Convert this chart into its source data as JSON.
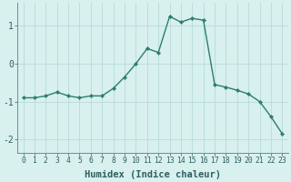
{
  "xlabel": "Humidex (Indice chaleur)",
  "x": [
    0,
    1,
    2,
    3,
    4,
    5,
    6,
    7,
    8,
    9,
    10,
    11,
    12,
    13,
    14,
    15,
    16,
    17,
    18,
    19,
    20,
    21,
    22,
    23
  ],
  "y": [
    -0.9,
    -0.9,
    -0.85,
    -0.75,
    -0.85,
    -0.9,
    -0.85,
    -0.85,
    -0.65,
    -0.35,
    0.0,
    0.4,
    0.3,
    1.25,
    1.1,
    1.2,
    1.15,
    -0.55,
    -0.62,
    -0.7,
    -0.8,
    -1.0,
    -1.4,
    -1.85
  ],
  "line_color": "#2d7d6e",
  "marker": "D",
  "marker_size": 2.2,
  "bg_color": "#d8f0ee",
  "grid_color": "#b8dbd8",
  "yticks": [
    -2,
    -1,
    0,
    1
  ],
  "ylim": [
    -2.35,
    1.6
  ],
  "xlim": [
    -0.5,
    23.5
  ],
  "xtick_fontsize": 5.8,
  "ytick_fontsize": 7.0,
  "xlabel_fontsize": 7.5
}
